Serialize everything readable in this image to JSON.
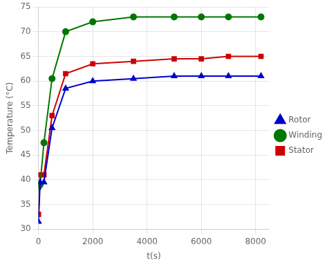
{
  "chart_data": {
    "type": "line",
    "xlabel": "t(s)",
    "ylabel": "Temperature (°C)",
    "x": [
      0,
      60,
      200,
      500,
      1000,
      2000,
      3500,
      5000,
      6000,
      7000,
      8200
    ],
    "series": [
      {
        "name": "Rotor",
        "color": "#0000cc",
        "marker": "triangle",
        "values": [
          31.5,
          39.5,
          39.5,
          50.5,
          58.5,
          60.0,
          60.5,
          61.0,
          61.0,
          61.0,
          61.0
        ]
      },
      {
        "name": "Winding",
        "color": "#007700",
        "marker": "circle",
        "values": [
          38.5,
          39.0,
          47.5,
          60.5,
          70.0,
          72.0,
          73.0,
          73.0,
          73.0,
          73.0,
          73.0
        ]
      },
      {
        "name": "Stator",
        "color": "#cc0000",
        "marker": "square",
        "values": [
          33.0,
          41.0,
          41.0,
          53.0,
          61.5,
          63.5,
          64.0,
          64.5,
          64.5,
          65.0,
          65.0
        ]
      }
    ],
    "xlim": [
      0,
      8500
    ],
    "xticks": [
      0,
      2000,
      4000,
      6000,
      8000
    ],
    "ylim": [
      30,
      75
    ],
    "yticks": [
      30,
      35,
      40,
      45,
      50,
      55,
      60,
      65,
      70,
      75
    ],
    "grid": true,
    "legend": "right"
  }
}
